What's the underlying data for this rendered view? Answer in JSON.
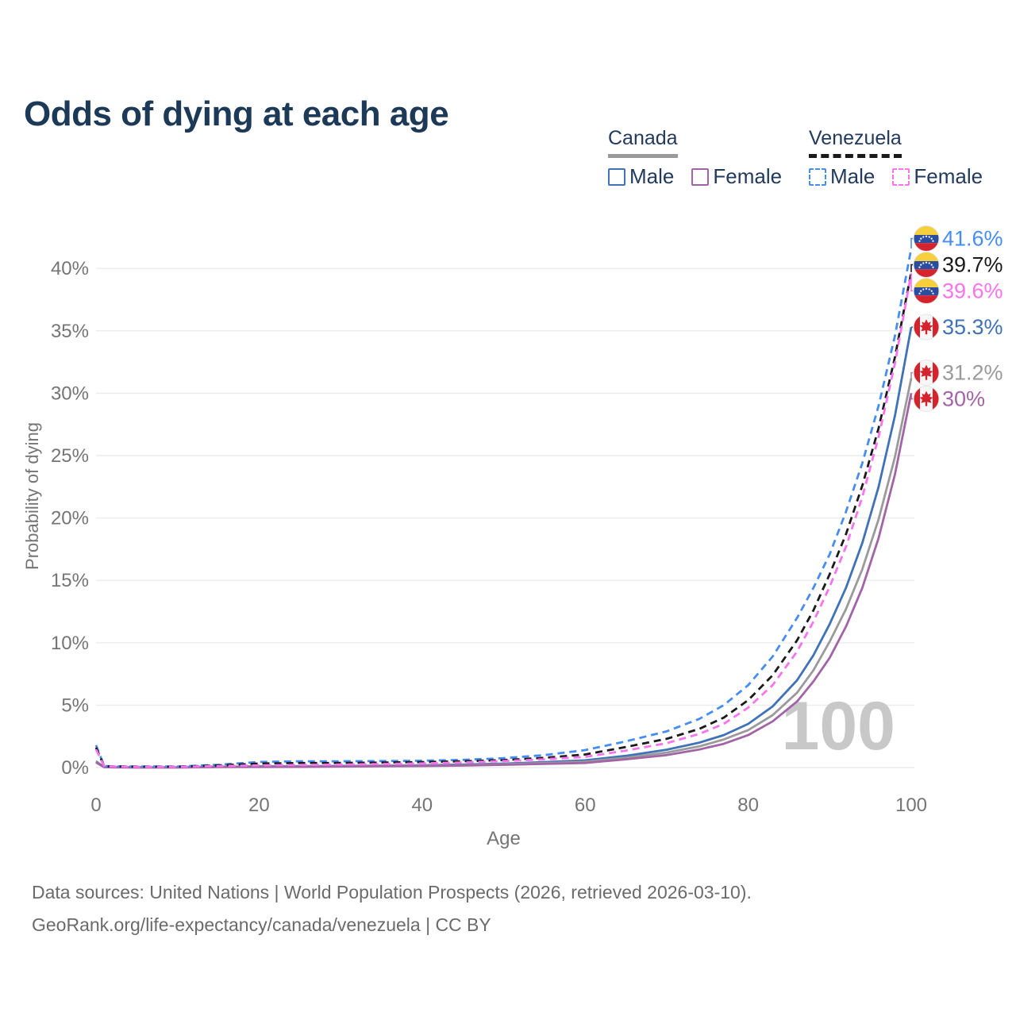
{
  "header": {
    "title": "Odds of dying at each age"
  },
  "legend": {
    "groups": [
      {
        "name": "Canada",
        "line_style": "solid",
        "line_color": "#9a9a9a",
        "items": [
          {
            "label": "Male",
            "color": "#3f72b7",
            "style": "solid"
          },
          {
            "label": "Female",
            "color": "#a264a6",
            "style": "solid"
          }
        ]
      },
      {
        "name": "Venezuela",
        "line_style": "dashed",
        "line_color": "#1a1a1a",
        "items": [
          {
            "label": "Male",
            "color": "#468df3",
            "style": "dashed"
          },
          {
            "label": "Female",
            "color": "#f973ef",
            "style": "dashed"
          }
        ]
      }
    ]
  },
  "chart_data": {
    "type": "line",
    "title": "Odds of dying at each age",
    "xlabel": "Age",
    "ylabel": "Probability of dying",
    "xlim": [
      0,
      100
    ],
    "ylim": [
      0,
      43
    ],
    "grid": "horizontal",
    "legend_position": "top-right",
    "watermark": "100",
    "x_tick_values": [
      0,
      20,
      40,
      60,
      80,
      100
    ],
    "x_tick_labels": [
      "0",
      "20",
      "40",
      "60",
      "80",
      "100"
    ],
    "y_tick_values": [
      0,
      5,
      10,
      15,
      20,
      25,
      30,
      35,
      40
    ],
    "y_tick_labels": [
      "0%",
      "5%",
      "10%",
      "15%",
      "20%",
      "25%",
      "30%",
      "35%",
      "40%"
    ],
    "x": [
      0,
      1,
      2,
      5,
      10,
      15,
      20,
      25,
      30,
      35,
      40,
      45,
      50,
      55,
      60,
      65,
      70,
      74,
      77,
      80,
      83,
      86,
      88,
      90,
      92,
      94,
      96,
      98,
      100
    ],
    "series": [
      {
        "name": "Venezuela Male",
        "style": "dashed",
        "color": "#468df3",
        "flag": "venezuela",
        "end_label": "41.6%",
        "label_color": "#468df3",
        "values": [
          1.8,
          0.12,
          0.1,
          0.08,
          0.08,
          0.22,
          0.45,
          0.5,
          0.5,
          0.52,
          0.55,
          0.62,
          0.75,
          1.0,
          1.4,
          2.1,
          2.9,
          3.9,
          5.0,
          6.6,
          8.9,
          12.0,
          14.4,
          17.1,
          20.5,
          24.4,
          29.0,
          34.6,
          41.6
        ]
      },
      {
        "name": "Venezuela",
        "style": "dashed",
        "color": "#1a1a1a",
        "flag": "venezuela",
        "end_label": "39.7%",
        "label_color": "#1a1a1a",
        "values": [
          1.6,
          0.11,
          0.09,
          0.07,
          0.07,
          0.17,
          0.32,
          0.36,
          0.37,
          0.4,
          0.44,
          0.5,
          0.6,
          0.78,
          1.05,
          1.65,
          2.3,
          3.1,
          4.0,
          5.4,
          7.4,
          10.2,
          12.6,
          15.5,
          18.7,
          22.6,
          27.2,
          32.9,
          39.7
        ]
      },
      {
        "name": "Venezuela Female",
        "style": "dashed",
        "color": "#f973ef",
        "flag": "venezuela",
        "end_label": "39.6%",
        "label_color": "#f973ef",
        "values": [
          1.45,
          0.1,
          0.08,
          0.06,
          0.06,
          0.12,
          0.18,
          0.21,
          0.24,
          0.28,
          0.33,
          0.41,
          0.52,
          0.66,
          0.85,
          1.36,
          1.95,
          2.7,
          3.5,
          4.8,
          6.6,
          9.3,
          11.7,
          14.5,
          17.7,
          21.7,
          26.5,
          32.4,
          39.6
        ]
      },
      {
        "name": "Canada Male",
        "style": "solid",
        "color": "#3f72b7",
        "flag": "canada",
        "end_label": "35.3%",
        "label_color": "#3f72b7",
        "values": [
          0.5,
          0.04,
          0.03,
          0.02,
          0.02,
          0.06,
          0.1,
          0.11,
          0.13,
          0.15,
          0.18,
          0.24,
          0.32,
          0.43,
          0.58,
          0.94,
          1.43,
          2.0,
          2.6,
          3.5,
          4.9,
          7.0,
          9.0,
          11.5,
          14.4,
          18.0,
          22.5,
          28.2,
          35.3
        ]
      },
      {
        "name": "Canada",
        "style": "solid",
        "color": "#9a9a9a",
        "flag": "canada",
        "end_label": "31.2%",
        "label_color": "#9a9a9a",
        "values": [
          0.45,
          0.035,
          0.025,
          0.015,
          0.015,
          0.05,
          0.08,
          0.09,
          0.1,
          0.12,
          0.15,
          0.2,
          0.27,
          0.36,
          0.47,
          0.79,
          1.2,
          1.7,
          2.25,
          3.0,
          4.2,
          6.0,
          7.8,
          10.1,
          12.7,
          15.9,
          19.9,
          24.9,
          31.2
        ]
      },
      {
        "name": "Canada Female",
        "style": "solid",
        "color": "#a264a6",
        "flag": "canada",
        "end_label": "30%",
        "label_color": "#a264a6",
        "values": [
          0.4,
          0.03,
          0.02,
          0.012,
          0.012,
          0.035,
          0.05,
          0.06,
          0.08,
          0.1,
          0.12,
          0.16,
          0.22,
          0.29,
          0.37,
          0.66,
          1.0,
          1.45,
          1.9,
          2.6,
          3.7,
          5.3,
          6.9,
          8.8,
          11.3,
          14.4,
          18.4,
          23.5,
          30.0
        ]
      }
    ]
  },
  "footer": {
    "line1": "Data sources: United Nations | World Population Prospects (2026, retrieved 2026-03-10).",
    "line2": "GeoRank.org/life-expectancy/canada/venezuela | CC BY"
  }
}
